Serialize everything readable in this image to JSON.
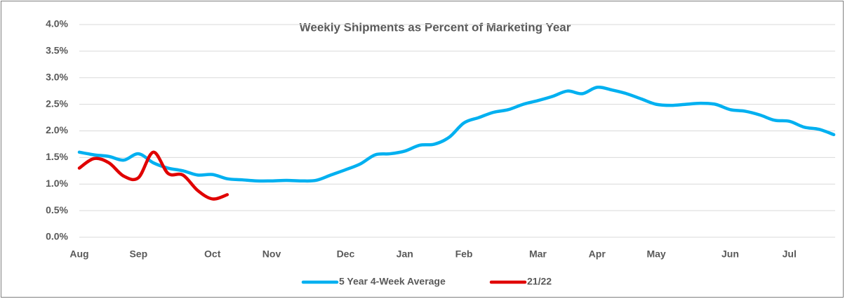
{
  "chart_data": {
    "type": "line",
    "title": "Weekly Shipments as Percent of Marketing Year",
    "categories": [
      "Aug",
      null,
      null,
      null,
      "Sep",
      null,
      null,
      null,
      null,
      "Oct",
      null,
      null,
      null,
      "Nov",
      null,
      null,
      null,
      null,
      "Dec",
      null,
      null,
      null,
      "Jan",
      null,
      null,
      null,
      "Feb",
      null,
      null,
      null,
      null,
      "Mar",
      null,
      null,
      null,
      "Apr",
      null,
      null,
      null,
      "May",
      null,
      null,
      null,
      null,
      "Jun",
      null,
      null,
      null,
      "Jul",
      null,
      null,
      null
    ],
    "series": [
      {
        "name": "5 Year 4-Week Average",
        "color": "#00b0f0",
        "values": [
          1.6,
          1.55,
          1.52,
          1.45,
          1.57,
          1.4,
          1.3,
          1.25,
          1.17,
          1.18,
          1.1,
          1.08,
          1.06,
          1.06,
          1.07,
          1.06,
          1.07,
          1.17,
          1.27,
          1.38,
          1.55,
          1.57,
          1.62,
          1.73,
          1.75,
          1.88,
          2.15,
          2.25,
          2.35,
          2.4,
          2.5,
          2.57,
          2.65,
          2.75,
          2.7,
          2.82,
          2.77,
          2.7,
          2.6,
          2.5,
          2.48,
          2.5,
          2.52,
          2.5,
          2.4,
          2.37,
          2.3,
          2.2,
          2.18,
          2.07,
          2.03,
          1.93
        ]
      },
      {
        "name": "21/22",
        "color": "#e00000",
        "values": [
          1.3,
          1.48,
          1.4,
          1.15,
          1.12,
          1.6,
          1.2,
          1.17,
          0.88,
          0.72,
          0.8,
          null,
          null,
          null,
          null,
          null,
          null,
          null,
          null,
          null,
          null,
          null,
          null,
          null,
          null,
          null,
          null,
          null,
          null,
          null,
          null,
          null,
          null,
          null,
          null,
          null,
          null,
          null,
          null,
          null,
          null,
          null,
          null,
          null,
          null,
          null,
          null,
          null,
          null,
          null,
          null,
          null
        ]
      }
    ],
    "ylim": [
      0,
      4
    ],
    "yticks": [
      {
        "value": 0,
        "label": "0.0%"
      },
      {
        "value": 0.5,
        "label": "0.5%"
      },
      {
        "value": 1,
        "label": "1.0%"
      },
      {
        "value": 1.5,
        "label": "1.5%"
      },
      {
        "value": 2,
        "label": "2.0%"
      },
      {
        "value": 2.5,
        "label": "2.5%"
      },
      {
        "value": 3,
        "label": "3.0%"
      },
      {
        "value": 3.5,
        "label": "3.5%"
      },
      {
        "value": 4,
        "label": "4.0%"
      }
    ],
    "grid": true,
    "legend": "bottom"
  }
}
